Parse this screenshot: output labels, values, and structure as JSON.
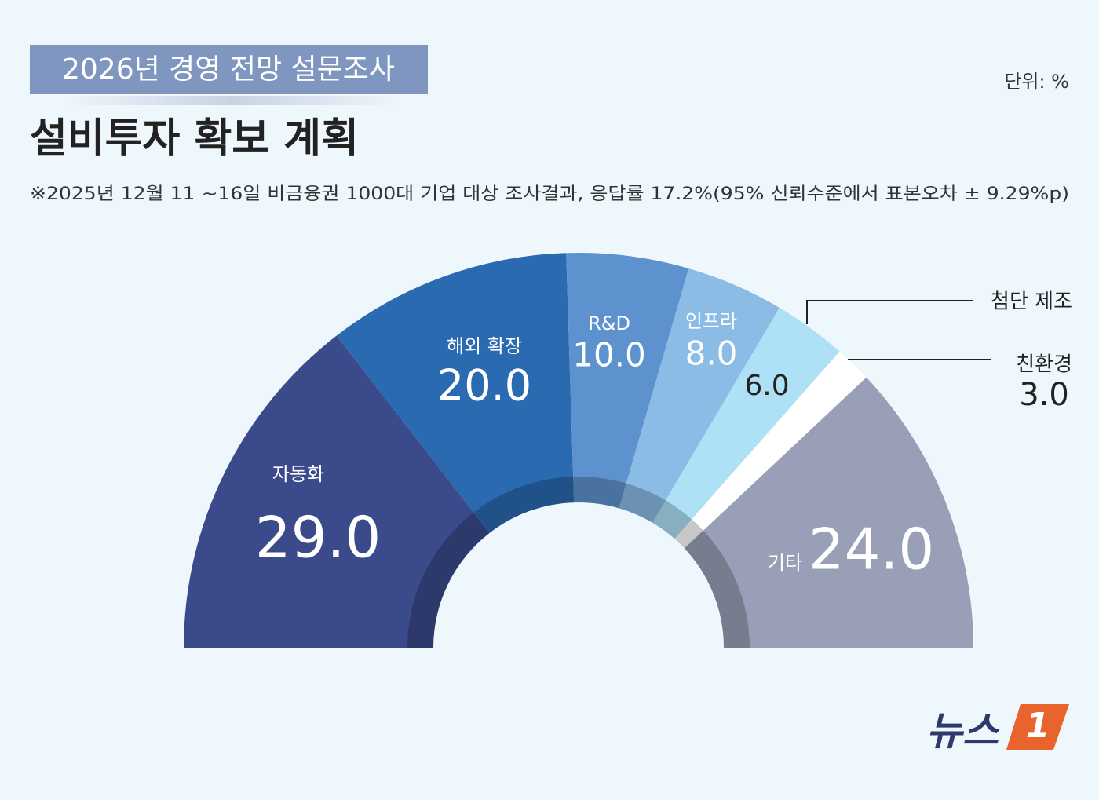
{
  "chart_data": {
    "type": "half-donut",
    "tag": "2026년 경영 전망 설문조사",
    "title": "설비투자 확보 계획",
    "unit": "단위: %",
    "note": "※2025년 12월 11 ~16일 비금융권 1000대 기업 대상 조사결과, 응답률 17.2%(95% 신뢰수준에서 표본오차 ± 9.29%p)",
    "categories": [
      "자동화",
      "해외 확장",
      "R&D",
      "인프라",
      "첨단 제조",
      "친환경",
      "기타"
    ],
    "values": [
      29,
      20,
      10,
      8,
      6,
      3,
      24
    ],
    "value_labels": [
      "29.0",
      "20.0",
      "10.0",
      "8.0",
      "6.0",
      "3.0",
      "24.0"
    ],
    "colors": [
      "#3a4a8a",
      "#2a6ab0",
      "#5e92cf",
      "#8bbce6",
      "#aee0f6",
      "#ffffff",
      "#9a9fb8"
    ],
    "logo": {
      "text": "뉴스",
      "badge": "1"
    }
  }
}
